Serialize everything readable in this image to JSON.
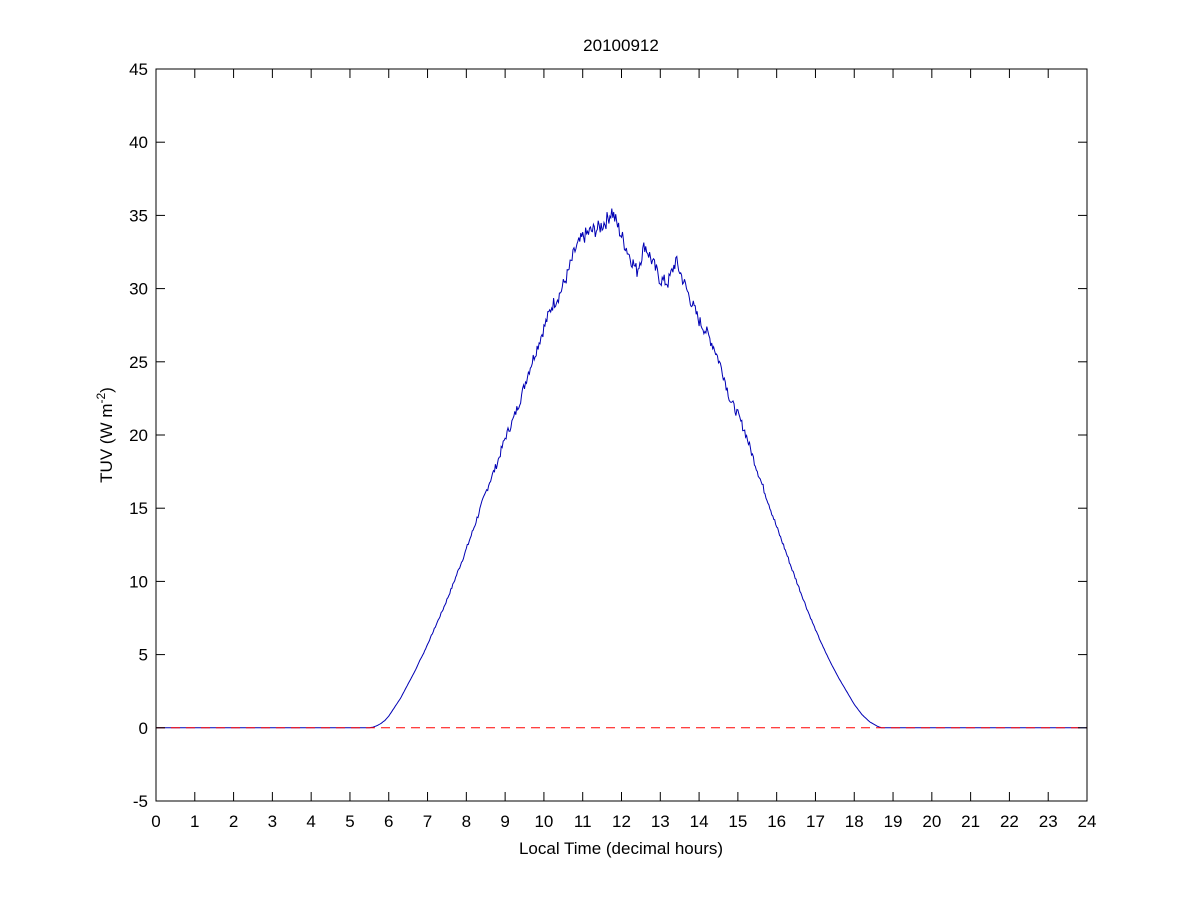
{
  "figure": {
    "background": "#ffffff"
  },
  "chart_data": {
    "type": "line",
    "title": "20100912",
    "xlabel": "Local Time (decimal hours)",
    "ylabel": "TUV (W m^-2)",
    "ylabel_parts": {
      "main": "TUV (W m",
      "sup": "-2",
      "close": ")"
    },
    "xlim": [
      0,
      24
    ],
    "ylim": [
      -5,
      45
    ],
    "xticks": [
      0,
      1,
      2,
      3,
      4,
      5,
      6,
      7,
      8,
      9,
      10,
      11,
      12,
      13,
      14,
      15,
      16,
      17,
      18,
      19,
      20,
      21,
      22,
      23,
      24
    ],
    "yticks": [
      -5,
      0,
      5,
      10,
      15,
      20,
      25,
      30,
      35,
      40,
      45
    ],
    "grid": false,
    "legend": "none",
    "series": [
      {
        "color": "#0000b4",
        "style": "solid",
        "x": [
          0,
          5.5,
          5.6,
          5.7,
          5.8,
          5.9,
          6.0,
          6.1,
          6.2,
          6.3,
          6.4,
          6.5,
          6.6,
          6.7,
          6.8,
          6.9,
          7.0,
          7.2,
          7.4,
          7.6,
          7.8,
          8.0,
          8.2,
          8.4,
          8.6,
          8.8,
          9.0,
          9.2,
          9.4,
          9.6,
          9.8,
          10.0,
          10.2,
          10.4,
          10.6,
          10.8,
          11.0,
          11.2,
          11.4,
          11.6,
          11.75,
          11.9,
          12.0,
          12.2,
          12.4,
          12.6,
          12.8,
          13.0,
          13.2,
          13.4,
          13.6,
          13.8,
          14.0,
          14.2,
          14.4,
          14.6,
          14.8,
          15.0,
          15.2,
          15.4,
          15.6,
          15.8,
          16.0,
          16.2,
          16.4,
          16.6,
          16.8,
          17.0,
          17.2,
          17.4,
          17.6,
          17.8,
          18.0,
          18.2,
          18.4,
          18.6,
          18.7,
          24
        ],
        "y": [
          0,
          0,
          0.05,
          0.15,
          0.3,
          0.5,
          0.8,
          1.2,
          1.6,
          2.0,
          2.5,
          3.0,
          3.5,
          4.0,
          4.6,
          5.1,
          5.7,
          6.9,
          8.1,
          9.4,
          10.8,
          12.2,
          13.7,
          15.3,
          16.8,
          18.1,
          19.8,
          21.0,
          22.5,
          24.3,
          25.8,
          27.3,
          28.8,
          29.6,
          30.9,
          32.6,
          33.5,
          33.9,
          34.1,
          34.6,
          35.3,
          34.3,
          33.6,
          32.3,
          31.2,
          33.0,
          31.8,
          30.6,
          30.4,
          31.9,
          30.5,
          29.1,
          27.8,
          27.0,
          25.9,
          24.4,
          22.4,
          21.4,
          20.1,
          18.4,
          16.8,
          15.3,
          13.7,
          12.3,
          10.8,
          9.4,
          8.0,
          6.7,
          5.5,
          4.4,
          3.4,
          2.5,
          1.6,
          0.9,
          0.4,
          0.1,
          0,
          0
        ]
      },
      {
        "color": "#ff0000",
        "style": "dashed",
        "x": [
          0,
          24
        ],
        "y": [
          0,
          0
        ]
      }
    ]
  }
}
